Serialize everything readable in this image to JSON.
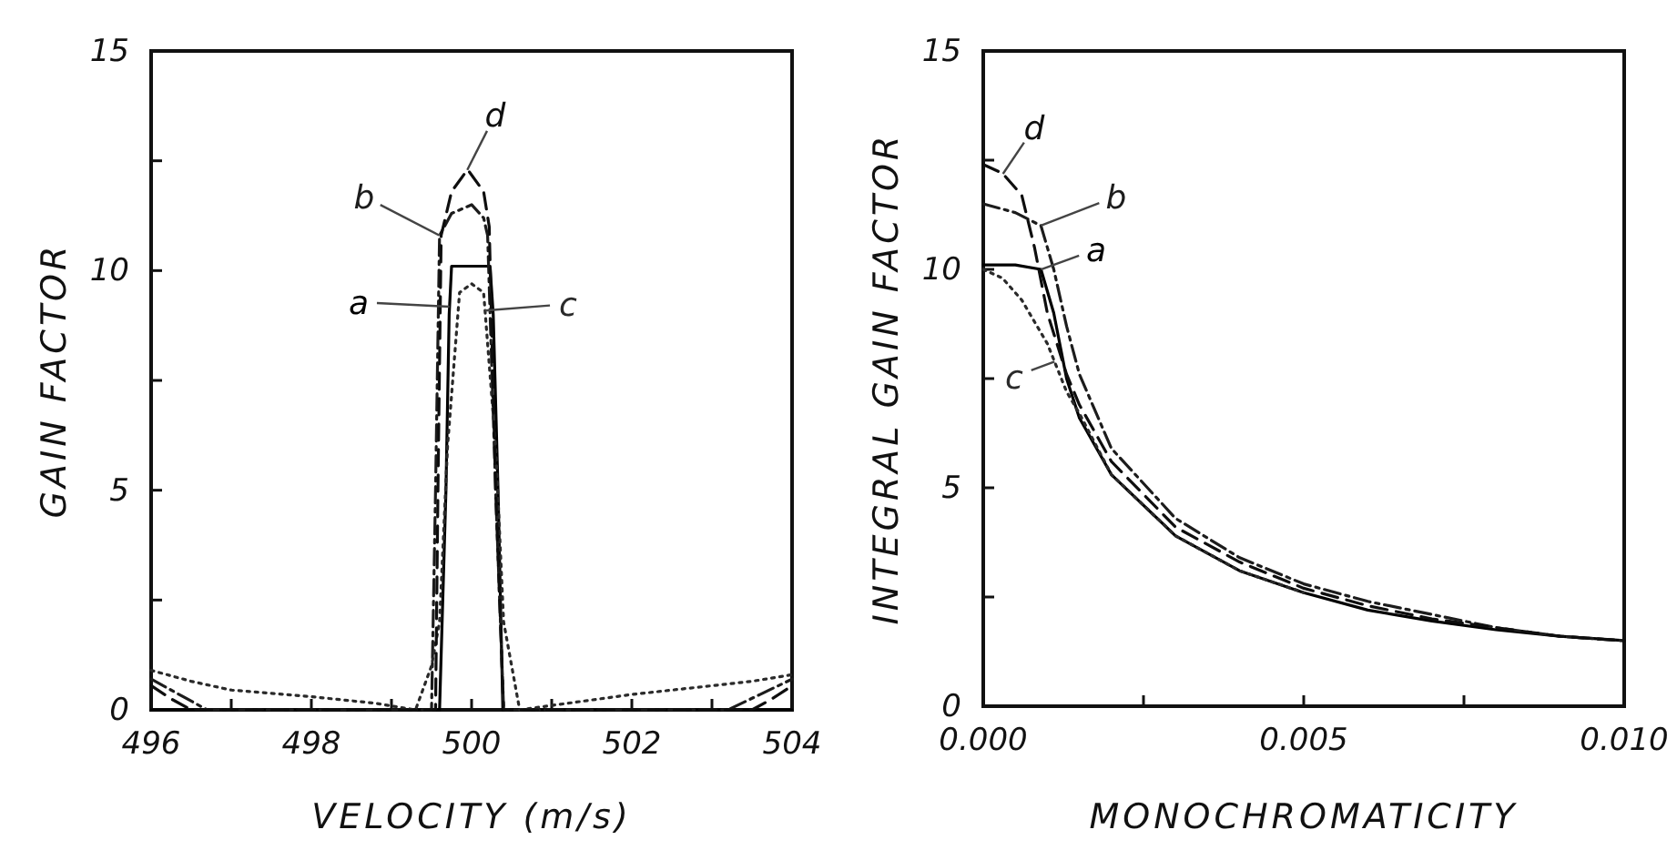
{
  "chart_data": [
    {
      "type": "line",
      "xlabel": "VELOCITY  (m/s)",
      "ylabel": "GAIN  FACTOR",
      "xlim": [
        496,
        504
      ],
      "ylim": [
        0,
        15
      ],
      "xticks": [
        496,
        {
          "value": 497,
          "label": null
        },
        498,
        {
          "value": 499,
          "label": null
        },
        500,
        {
          "value": 501,
          "label": null
        },
        502,
        {
          "value": 503,
          "label": null
        },
        504
      ],
      "yticks": [
        0,
        {
          "value": 2.5,
          "label": null
        },
        5,
        {
          "value": 7.5,
          "label": null
        },
        10,
        {
          "value": 12.5,
          "label": null
        },
        15
      ],
      "grid": false,
      "marker": "none",
      "series": [
        {
          "name": "a",
          "color": "#000000",
          "line_style": "solid",
          "x": [
            496,
            499.6,
            499.68,
            499.72,
            499.75,
            500.23,
            500.27,
            500.33,
            500.39,
            504
          ],
          "values": [
            0,
            0,
            5,
            9,
            10.1,
            10.1,
            9,
            5,
            0,
            0
          ]
        },
        {
          "name": "b",
          "color": "#1c1c1c",
          "line_style": "dashdot",
          "x": [
            496,
            496.3,
            496.7,
            499.5,
            499.55,
            499.6,
            499.75,
            500,
            500.15,
            500.2,
            500.3,
            500.4,
            503.2,
            503.6,
            504
          ],
          "values": [
            0.7,
            0.4,
            0,
            0,
            5,
            10.8,
            11.3,
            11.5,
            11.2,
            10.8,
            5,
            0,
            0,
            0.35,
            0.7
          ]
        },
        {
          "name": "c",
          "color": "#2a2a2a",
          "line_style": "dotted",
          "x": [
            496,
            496.5,
            497,
            498,
            498.8,
            499.3,
            499.5,
            499.6,
            499.7,
            499.85,
            500,
            500.15,
            500.3,
            500.4,
            500.5,
            500.6,
            501.2,
            502,
            503,
            503.5,
            504
          ],
          "values": [
            0.9,
            0.65,
            0.45,
            0.3,
            0.15,
            0,
            1,
            2,
            6,
            9.5,
            9.7,
            9.5,
            6,
            2,
            1,
            0,
            0.15,
            0.35,
            0.55,
            0.65,
            0.8
          ]
        },
        {
          "name": "d",
          "color": "#0e0e0e",
          "line_style": "dashed",
          "x": [
            496,
            496.25,
            496.5,
            499.55,
            499.58,
            499.62,
            499.75,
            499.95,
            500.15,
            500.22,
            500.3,
            500.4,
            503.5,
            503.75,
            504
          ],
          "values": [
            0.55,
            0.25,
            0,
            0,
            5,
            10.8,
            11.8,
            12.3,
            11.8,
            11,
            5,
            0,
            0,
            0.25,
            0.55
          ]
        }
      ]
    },
    {
      "type": "line",
      "xlabel": "MONOCHROMATICITY",
      "ylabel": "INTEGRAL  GAIN  FACTOR",
      "xlim": [
        0,
        0.01
      ],
      "ylim": [
        0,
        15
      ],
      "xticks": [
        {
          "value": 0,
          "label": "0.000"
        },
        {
          "value": 0.0025,
          "label": null
        },
        {
          "value": 0.005,
          "label": "0.005"
        },
        {
          "value": 0.0075,
          "label": null
        },
        {
          "value": 0.01,
          "label": "0.010"
        }
      ],
      "yticks": [
        0,
        {
          "value": 2.5,
          "label": null
        },
        5,
        {
          "value": 7.5,
          "label": null
        },
        10,
        {
          "value": 12.5,
          "label": null
        },
        15
      ],
      "grid": false,
      "marker": "none",
      "series": [
        {
          "name": "a",
          "color": "#000000",
          "line_style": "solid",
          "x": [
            0,
            0.0005,
            0.0009,
            0.0011,
            0.0013,
            0.0015,
            0.002,
            0.003,
            0.004,
            0.005,
            0.006,
            0.007,
            0.008,
            0.009,
            0.01
          ],
          "values": [
            10.1,
            10.1,
            10,
            9,
            7.5,
            6.6,
            5.3,
            3.9,
            3.1,
            2.6,
            2.2,
            1.95,
            1.75,
            1.6,
            1.5
          ]
        },
        {
          "name": "b",
          "color": "#1c1c1c",
          "line_style": "dashdot",
          "x": [
            0,
            0.0005,
            0.0009,
            0.0011,
            0.0013,
            0.0015,
            0.002,
            0.003,
            0.004,
            0.005,
            0.006,
            0.007,
            0.008,
            0.009,
            0.01
          ],
          "values": [
            11.5,
            11.3,
            11,
            10,
            8.7,
            7.6,
            5.9,
            4.3,
            3.4,
            2.8,
            2.4,
            2.1,
            1.8,
            1.6,
            1.5
          ]
        },
        {
          "name": "c",
          "color": "#2a2a2a",
          "line_style": "dotted",
          "x": [
            0,
            0.0003,
            0.0006,
            0.001,
            0.0013,
            0.0015,
            0.002,
            0.003,
            0.004,
            0.005
          ],
          "values": [
            10,
            9.8,
            9.3,
            8.3,
            7.2,
            6.7,
            5.3,
            3.9,
            3.1,
            2.6
          ]
        },
        {
          "name": "d",
          "color": "#0e0e0e",
          "line_style": "dashed",
          "x": [
            0,
            0.0003,
            0.0006,
            0.0008,
            0.001,
            0.0013,
            0.0015,
            0.002,
            0.003,
            0.004,
            0.005,
            0.006,
            0.007,
            0.008,
            0.009,
            0.01
          ],
          "values": [
            12.4,
            12.2,
            11.7,
            10.5,
            9,
            7.6,
            6.9,
            5.6,
            4.1,
            3.3,
            2.7,
            2.3,
            2,
            1.8,
            1.6,
            1.5
          ]
        }
      ]
    }
  ]
}
